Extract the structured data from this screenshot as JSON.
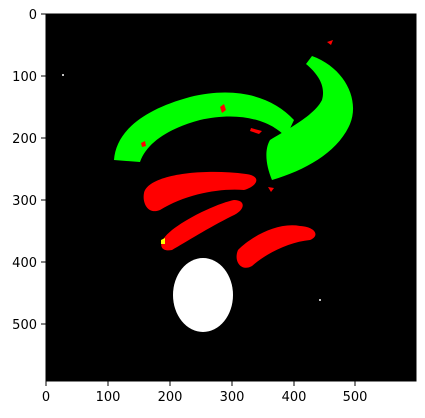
{
  "figure": {
    "x_ticks": [
      "0",
      "100",
      "200",
      "300",
      "400",
      "500"
    ],
    "y_ticks": [
      "0",
      "100",
      "200",
      "300",
      "400",
      "500"
    ],
    "image": {
      "background_color": "#000000",
      "colors": {
        "green": "#00ff00",
        "red": "#ff0000",
        "white": "#ffffff",
        "yellow": "#ffff00"
      }
    }
  }
}
